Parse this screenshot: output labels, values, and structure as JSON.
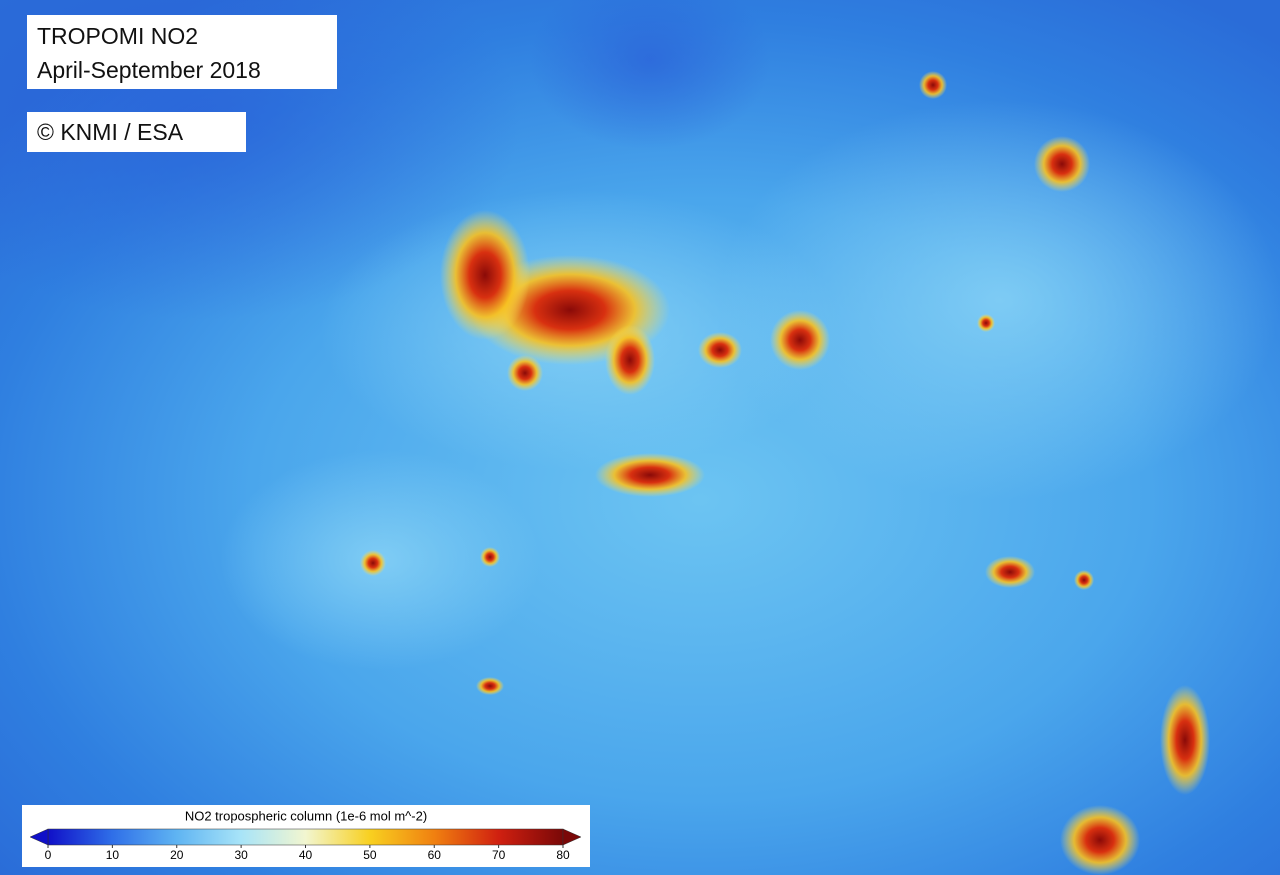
{
  "header": {
    "title": "TROPOMI NO2",
    "period": "April-September 2018",
    "credit": "© KNMI / ESA"
  },
  "colorbar": {
    "title": "NO2 tropospheric column (1e-6 mol m^-2)",
    "range": [
      0,
      80
    ],
    "ticks": [
      0,
      10,
      20,
      30,
      40,
      50,
      60,
      70,
      80
    ],
    "colors": [
      "#1010c8",
      "#2f6fe8",
      "#5fb4f2",
      "#a8e4f8",
      "#f2f6d0",
      "#f8d020",
      "#f08010",
      "#d02010",
      "#7a0808"
    ]
  }
}
